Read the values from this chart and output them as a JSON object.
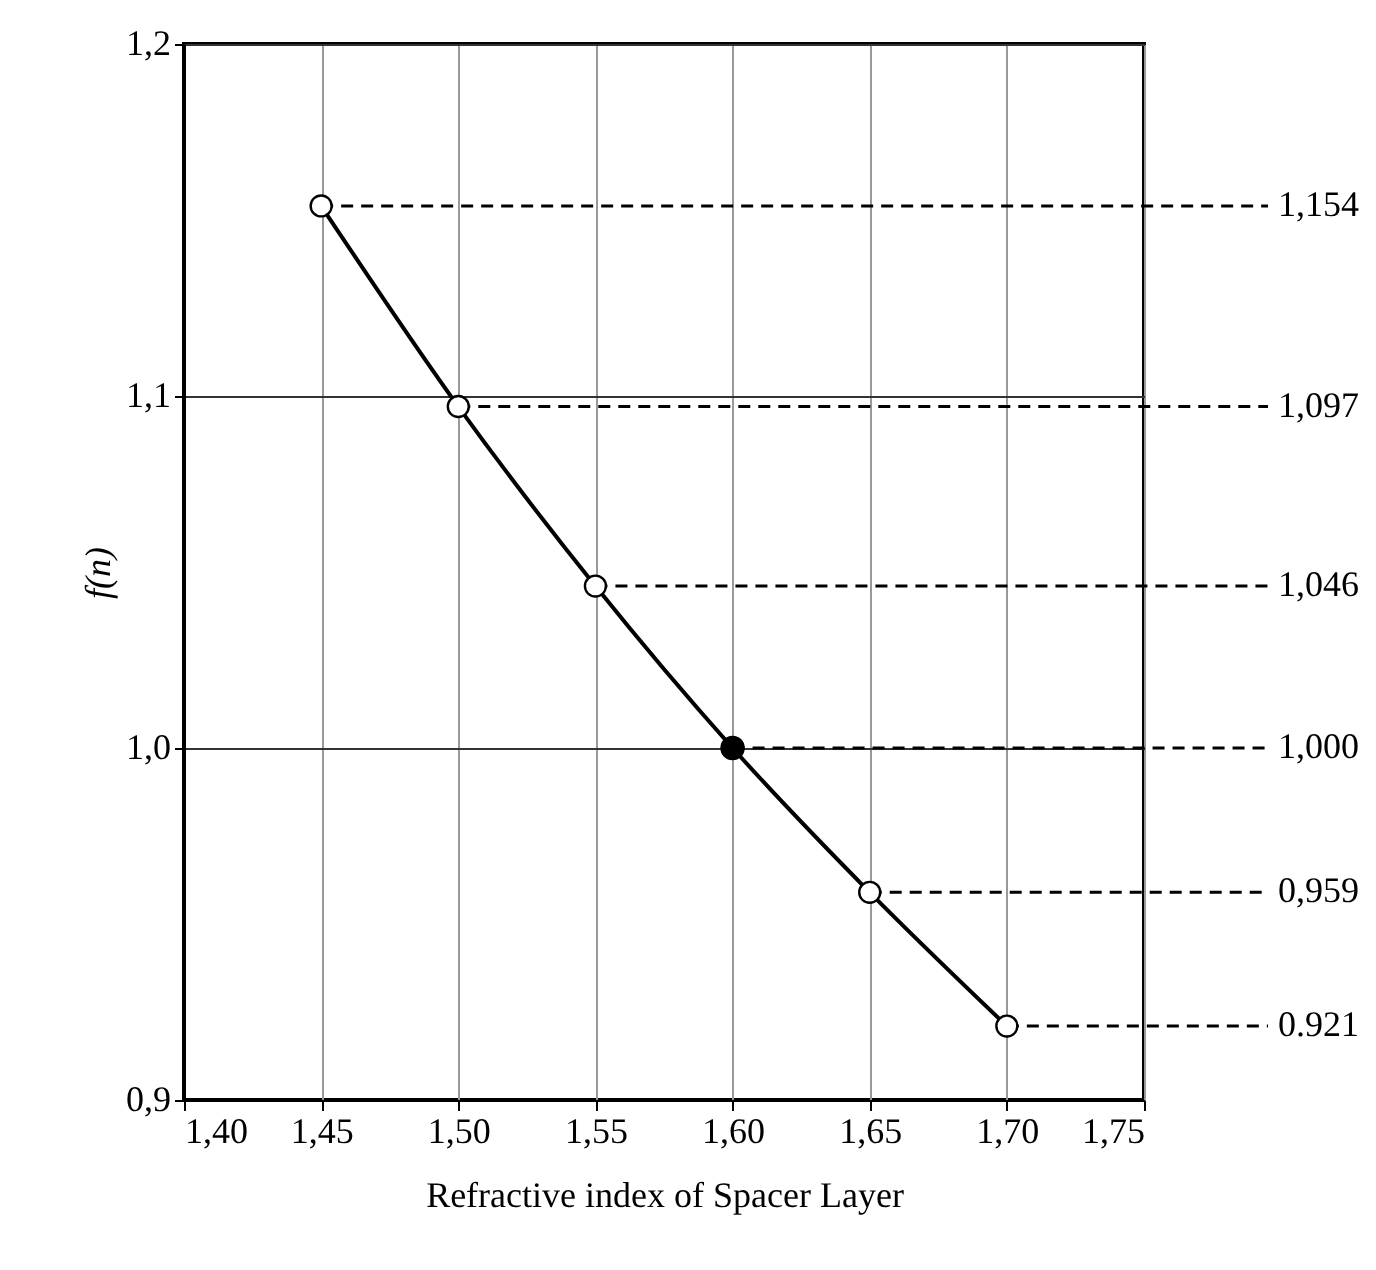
{
  "chart_data": {
    "type": "line",
    "xlabel": "Refractive index of Spacer Layer",
    "ylabel": "f(n)",
    "x": [
      1.45,
      1.5,
      1.55,
      1.6,
      1.65,
      1.7
    ],
    "series": [
      {
        "type": "line",
        "color": "#000000",
        "values": [
          1.154,
          1.097,
          1.046,
          1.0,
          0.959,
          0.921
        ],
        "value_labels": [
          "1,154",
          "1,097",
          "1,046",
          "1,000",
          "0,959",
          "0.921"
        ]
      },
      {
        "type": "scatter",
        "color": "#000000",
        "values": [
          null,
          null,
          null,
          1.0,
          null,
          null
        ]
      }
    ],
    "xlim": [
      1.4,
      1.75
    ],
    "xticks": [
      {
        "value": 1.4,
        "label": "1,40"
      },
      {
        "value": 1.45,
        "label": "1,45"
      },
      {
        "value": 1.5,
        "label": "1,50"
      },
      {
        "value": 1.55,
        "label": "1,55"
      },
      {
        "value": 1.6,
        "label": "1,60"
      },
      {
        "value": 1.65,
        "label": "1,65"
      },
      {
        "value": 1.7,
        "label": "1,70"
      },
      {
        "value": 1.75,
        "label": "1,75"
      }
    ],
    "ylim": [
      0.9,
      1.2
    ],
    "yticks": [
      {
        "value": 0.9,
        "label": "0,9"
      },
      {
        "value": 1.0,
        "label": "1,0"
      },
      {
        "value": 1.1,
        "label": "1,1"
      },
      {
        "value": 1.2,
        "label": "1,2"
      }
    ],
    "grid": true,
    "marker": "circle",
    "line_style": "solid"
  }
}
